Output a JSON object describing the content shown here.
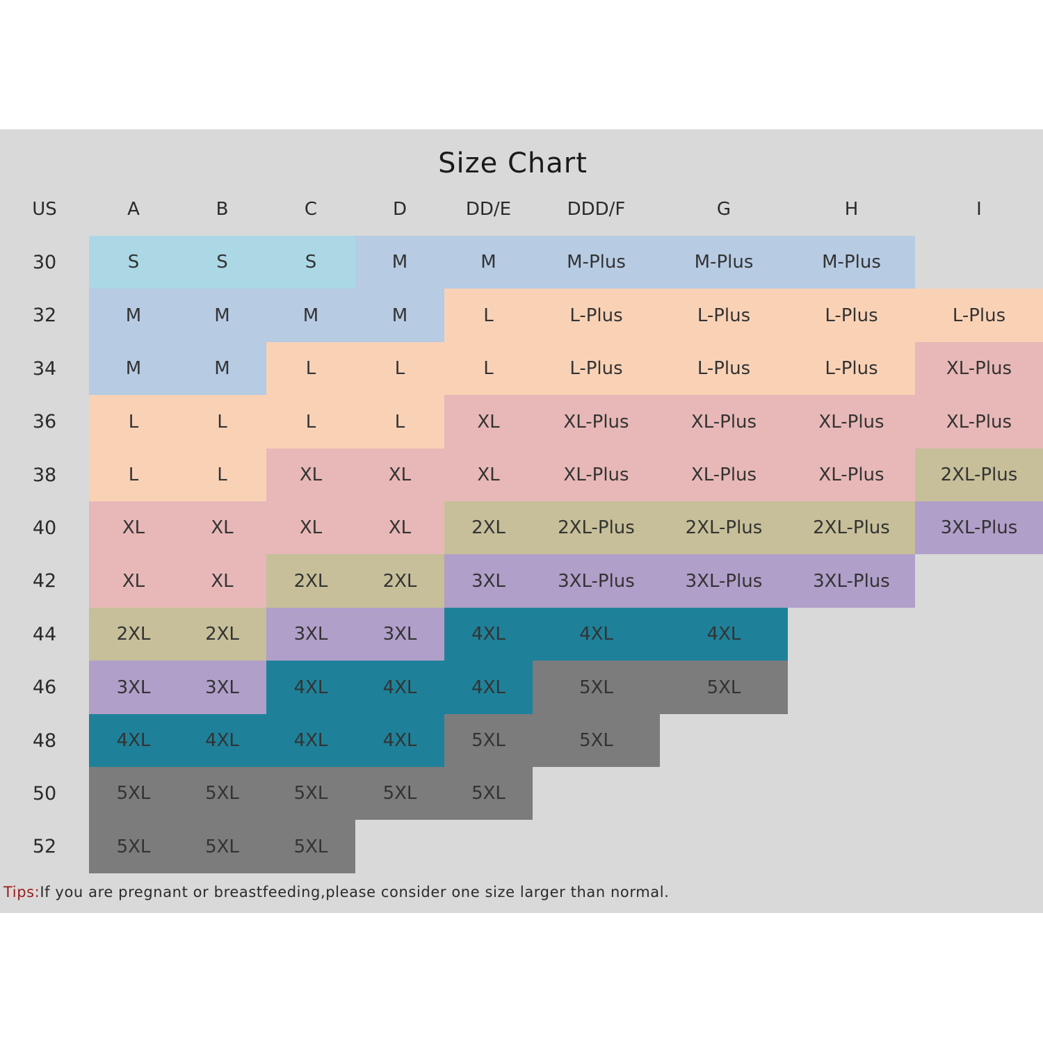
{
  "chart_data": {
    "type": "table",
    "title": "Size Chart",
    "corner_label": "US",
    "columns": [
      "A",
      "B",
      "C",
      "D",
      "DD/E",
      "DDD/F",
      "G",
      "H",
      "I"
    ],
    "rows": [
      {
        "band": "30",
        "sizes": [
          "S",
          "S",
          "S",
          "M",
          "M",
          "M-Plus",
          "M-Plus",
          "M-Plus",
          ""
        ]
      },
      {
        "band": "32",
        "sizes": [
          "M",
          "M",
          "M",
          "M",
          "L",
          "L-Plus",
          "L-Plus",
          "L-Plus",
          "L-Plus"
        ]
      },
      {
        "band": "34",
        "sizes": [
          "M",
          "M",
          "L",
          "L",
          "L",
          "L-Plus",
          "L-Plus",
          "L-Plus",
          "XL-Plus"
        ]
      },
      {
        "band": "36",
        "sizes": [
          "L",
          "L",
          "L",
          "L",
          "XL",
          "XL-Plus",
          "XL-Plus",
          "XL-Plus",
          "XL-Plus"
        ]
      },
      {
        "band": "38",
        "sizes": [
          "L",
          "L",
          "XL",
          "XL",
          "XL",
          "XL-Plus",
          "XL-Plus",
          "XL-Plus",
          "2XL-Plus"
        ]
      },
      {
        "band": "40",
        "sizes": [
          "XL",
          "XL",
          "XL",
          "XL",
          "2XL",
          "2XL-Plus",
          "2XL-Plus",
          "2XL-Plus",
          "3XL-Plus"
        ]
      },
      {
        "band": "42",
        "sizes": [
          "XL",
          "XL",
          "2XL",
          "2XL",
          "3XL",
          "3XL-Plus",
          "3XL-Plus",
          "3XL-Plus",
          ""
        ]
      },
      {
        "band": "44",
        "sizes": [
          "2XL",
          "2XL",
          "3XL",
          "3XL",
          "4XL",
          "4XL",
          "4XL",
          "",
          ""
        ]
      },
      {
        "band": "46",
        "sizes": [
          "3XL",
          "3XL",
          "4XL",
          "4XL",
          "4XL",
          "5XL",
          "5XL",
          "",
          ""
        ]
      },
      {
        "band": "48",
        "sizes": [
          "4XL",
          "4XL",
          "4XL",
          "4XL",
          "5XL",
          "5XL",
          "",
          "",
          ""
        ]
      },
      {
        "band": "50",
        "sizes": [
          "5XL",
          "5XL",
          "5XL",
          "5XL",
          "5XL",
          "",
          "",
          "",
          ""
        ]
      },
      {
        "band": "52",
        "sizes": [
          "5XL",
          "5XL",
          "5XL",
          "",
          "",
          "",
          "",
          "",
          ""
        ]
      }
    ],
    "size_colors": {
      "S": "#acd8e6",
      "M": "#b7cbe3",
      "L": "#f9d2b6",
      "XL": "#e7b8b7",
      "2XL": "#c6bf99",
      "3XL": "#b09fc9",
      "4XL": "#1e8199",
      "5XL": "#7c7c7c"
    },
    "panel_color": "#d9d9d9"
  },
  "tips": {
    "label": "Tips:",
    "text": "If you are pregnant or breastfeeding,please consider one size larger than normal."
  }
}
